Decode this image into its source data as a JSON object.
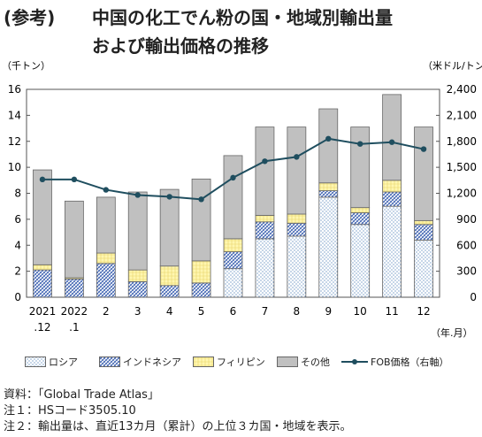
{
  "title": {
    "prefix": "(参考)",
    "line1": "中国の化工でん粉の国・地域別輸出量",
    "line2": "および輸出価格の推移"
  },
  "axes": {
    "left_unit": "（千トン）",
    "right_unit": "（米ドル/トン）",
    "x_unit": "（年.月）"
  },
  "notes": [
    "資料：「Global Trade Atlas」",
    "注１：HSコード3505.10",
    "注２：輸出量は、直近13カ月（累計）の上位３カ国・地域を表示。"
  ],
  "colors": {
    "russia": "#ffffff",
    "indonesia": "#ffffff",
    "philippines": "#fff6b0",
    "other": "#c0c0c0",
    "fob_line": "#1f4e5f"
  },
  "chart_data": {
    "type": "bar",
    "categories": [
      [
        "2021",
        ".12"
      ],
      [
        "2022",
        ".1"
      ],
      [
        "2"
      ],
      [
        "3"
      ],
      [
        "4"
      ],
      [
        "5"
      ],
      [
        "6"
      ],
      [
        "7"
      ],
      [
        "8"
      ],
      [
        "9"
      ],
      [
        "10"
      ],
      [
        "11"
      ],
      [
        "12"
      ]
    ],
    "stacked": true,
    "ylim": [
      0,
      16
    ],
    "yticks": [
      0,
      2,
      4,
      6,
      8,
      10,
      12,
      14,
      16
    ],
    "y2lim": [
      0,
      2400
    ],
    "y2ticks": [
      "0",
      "300",
      "600",
      "900",
      "1,200",
      "1,500",
      "1,800",
      "2,100",
      "2,400"
    ],
    "series": [
      {
        "name": "ロシア",
        "values": [
          0.0,
          0.0,
          0.0,
          0.0,
          0.0,
          0.0,
          2.2,
          4.5,
          4.7,
          7.7,
          5.6,
          7.0,
          4.4
        ]
      },
      {
        "name": "インドネシア",
        "values": [
          2.1,
          1.4,
          2.6,
          1.2,
          0.9,
          1.1,
          1.3,
          1.3,
          1.0,
          0.5,
          0.9,
          1.1,
          1.2
        ]
      },
      {
        "name": "フィリピン",
        "values": [
          0.4,
          0.1,
          0.8,
          0.9,
          1.5,
          1.7,
          1.0,
          0.5,
          0.7,
          0.6,
          0.4,
          0.9,
          0.3
        ]
      },
      {
        "name": "その他",
        "values": [
          7.3,
          5.9,
          4.3,
          6.0,
          5.9,
          6.3,
          6.4,
          6.8,
          6.7,
          5.7,
          6.2,
          6.6,
          7.2
        ]
      }
    ],
    "line": {
      "name": "FOB価格（右軸）",
      "values": [
        1360,
        1360,
        1240,
        1180,
        1160,
        1130,
        1380,
        1570,
        1620,
        1830,
        1770,
        1790,
        1710
      ]
    },
    "grid": false,
    "legend_position": "bottom"
  }
}
